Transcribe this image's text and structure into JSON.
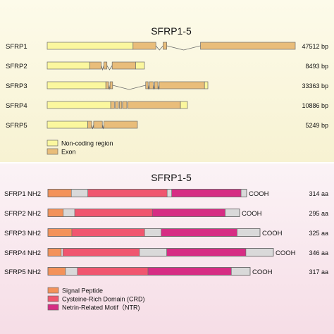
{
  "colors": {
    "top_panel_bg_top": "#fdfbea",
    "top_panel_bg_bottom": "#f7f2d2",
    "bottom_panel_bg_top": "#fbf3f6",
    "bottom_panel_bg_bottom": "#f6dde6",
    "noncoding": "#fbf79e",
    "exon": "#e9bd7a",
    "signal_peptide": "#f3925a",
    "crd": "#f0566f",
    "ntr": "#d62d84",
    "gap": "#d9d9d9",
    "stroke": "#6b6b6b"
  },
  "gene_panel": {
    "title": "SFRP1-5",
    "genes": [
      {
        "name": "SFRP1",
        "size": "47512 bp",
        "segments": [
          {
            "type": "noncoding",
            "start": 0,
            "end": 0.346
          },
          {
            "type": "exon",
            "start": 0.346,
            "end": 0.438
          },
          {
            "type": "exon",
            "start": 0.467,
            "end": 0.482
          },
          {
            "type": "exon",
            "start": 0.618,
            "end": 1.0
          }
        ]
      },
      {
        "name": "SFRP2",
        "size": "8493 bp",
        "segments": [
          {
            "type": "noncoding",
            "start": 0,
            "end": 0.438
          },
          {
            "type": "exon",
            "start": 0.438,
            "end": 0.556
          },
          {
            "type": "exon",
            "start": 0.582,
            "end": 0.614
          },
          {
            "type": "exon",
            "start": 0.668,
            "end": 0.909
          },
          {
            "type": "noncoding",
            "start": 0.909,
            "end": 1.0
          }
        ]
      },
      {
        "name": "SFRP3",
        "size": "33363 bp",
        "segments": [
          {
            "type": "noncoding",
            "start": 0,
            "end": 0.365
          },
          {
            "type": "exon",
            "start": 0.365,
            "end": 0.382
          },
          {
            "type": "exon",
            "start": 0.391,
            "end": 0.407
          },
          {
            "type": "exon",
            "start": 0.613,
            "end": 0.628
          },
          {
            "type": "exon",
            "start": 0.636,
            "end": 0.66
          },
          {
            "type": "exon",
            "start": 0.668,
            "end": 0.689
          },
          {
            "type": "exon",
            "start": 0.697,
            "end": 0.979
          },
          {
            "type": "noncoding",
            "start": 0.979,
            "end": 1.0
          }
        ]
      },
      {
        "name": "SFRP4",
        "size": "10886 bp",
        "segments": [
          {
            "type": "noncoding",
            "start": 0,
            "end": 0.453
          },
          {
            "type": "exon",
            "start": 0.453,
            "end": 0.479
          },
          {
            "type": "exon",
            "start": 0.486,
            "end": 0.508
          },
          {
            "type": "exon",
            "start": 0.515,
            "end": 0.532
          },
          {
            "type": "exon",
            "start": 0.538,
            "end": 0.568
          },
          {
            "type": "exon",
            "start": 0.575,
            "end": 0.95
          },
          {
            "type": "noncoding",
            "start": 0.95,
            "end": 1.0
          }
        ]
      },
      {
        "name": "SFRP5",
        "size": "5249 bp",
        "segments": [
          {
            "type": "noncoding",
            "start": 0,
            "end": 0.45
          },
          {
            "type": "exon",
            "start": 0.45,
            "end": 0.493
          },
          {
            "type": "exon",
            "start": 0.515,
            "end": 0.611
          },
          {
            "type": "exon",
            "start": 0.629,
            "end": 1.0
          }
        ]
      }
    ],
    "legend": [
      {
        "type": "noncoding",
        "label": "Non-coding region"
      },
      {
        "type": "exon",
        "label": "Exon"
      }
    ]
  },
  "protein_panel": {
    "title": "SFRP1-5",
    "n_label": "NH2",
    "c_label": "COOH",
    "proteins": [
      {
        "name": "SFRP1",
        "length": "314 aa",
        "domains": [
          {
            "type": "signal_peptide",
            "start": 0,
            "end": 0.118
          },
          {
            "type": "gap",
            "start": 0.118,
            "end": 0.201
          },
          {
            "type": "crd",
            "start": 0.201,
            "end": 0.6
          },
          {
            "type": "gap",
            "start": 0.6,
            "end": 0.623
          },
          {
            "type": "ntr",
            "start": 0.623,
            "end": 0.972
          },
          {
            "type": "gap",
            "start": 0.972,
            "end": 1.0
          }
        ]
      },
      {
        "name": "SFRP2",
        "length": "295 aa",
        "domains": [
          {
            "type": "signal_peptide",
            "start": 0,
            "end": 0.08
          },
          {
            "type": "gap",
            "start": 0.08,
            "end": 0.14
          },
          {
            "type": "crd",
            "start": 0.14,
            "end": 0.545
          },
          {
            "type": "ntr",
            "start": 0.545,
            "end": 0.925
          },
          {
            "type": "gap",
            "start": 0.925,
            "end": 1.0
          }
        ]
      },
      {
        "name": "SFRP3",
        "length": "325 aa",
        "domains": [
          {
            "type": "signal_peptide",
            "start": 0,
            "end": 0.113
          },
          {
            "type": "crd",
            "start": 0.113,
            "end": 0.456
          },
          {
            "type": "gap",
            "start": 0.456,
            "end": 0.534
          },
          {
            "type": "ntr",
            "start": 0.534,
            "end": 0.892
          },
          {
            "type": "gap",
            "start": 0.892,
            "end": 1.0
          }
        ]
      },
      {
        "name": "SFRP4",
        "length": "346 aa",
        "domains": [
          {
            "type": "signal_peptide",
            "start": 0,
            "end": 0.059
          },
          {
            "type": "gap",
            "start": 0.059,
            "end": 0.067
          },
          {
            "type": "crd",
            "start": 0.067,
            "end": 0.406
          },
          {
            "type": "gap",
            "start": 0.406,
            "end": 0.527
          },
          {
            "type": "ntr",
            "start": 0.527,
            "end": 0.878
          },
          {
            "type": "gap",
            "start": 0.878,
            "end": 1.0
          }
        ]
      },
      {
        "name": "SFRP5",
        "length": "317 aa",
        "domains": [
          {
            "type": "signal_peptide",
            "start": 0,
            "end": 0.087
          },
          {
            "type": "gap",
            "start": 0.087,
            "end": 0.146
          },
          {
            "type": "crd",
            "start": 0.146,
            "end": 0.495
          },
          {
            "type": "ntr",
            "start": 0.495,
            "end": 0.907
          },
          {
            "type": "gap",
            "start": 0.907,
            "end": 1.0
          }
        ]
      }
    ],
    "legend": [
      {
        "type": "signal_peptide",
        "label": "Signal Peptide"
      },
      {
        "type": "crd",
        "label": "Cysteine-Rich Domain (CRD)"
      },
      {
        "type": "ntr",
        "label": "Netrin-Related Motif（NTR)"
      }
    ]
  }
}
